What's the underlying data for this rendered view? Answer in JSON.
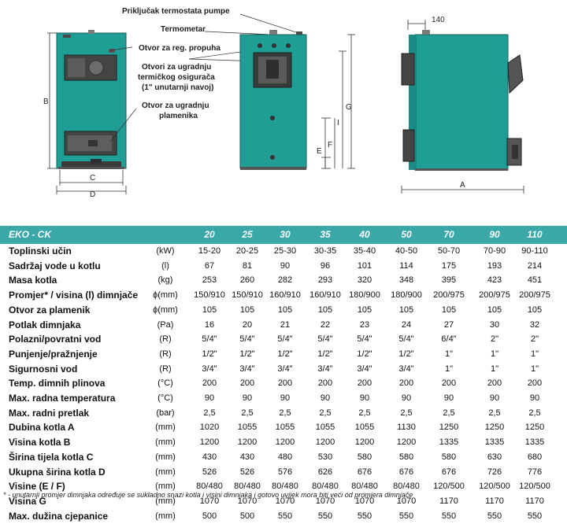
{
  "labels": {
    "thermostat": "Priključak termostata pumpe",
    "thermometer": "Termometar",
    "draft_opening": "Otvor za reg. propuha",
    "thermal_valve_l1": "Otvori za ugradnju",
    "thermal_valve_l2": "termičkog osigurača",
    "thermal_valve_l3": "(1\" unutarnji navoj)",
    "burner_l1": "Otvor za ugradnju",
    "burner_l2": "plamenika"
  },
  "dimensions": {
    "a": "A",
    "b": "B",
    "c": "C",
    "d": "D",
    "e": "E",
    "f": "F",
    "g": "G",
    "i": "I",
    "w140": "140"
  },
  "table": {
    "title": "EKO - CK",
    "columns": [
      "20",
      "25",
      "30",
      "35",
      "40",
      "50",
      "70",
      "90",
      "110"
    ],
    "rows": [
      {
        "name": "Toplinski učin",
        "unit": "(kW)",
        "values": [
          "15-20",
          "20-25",
          "25-30",
          "30-35",
          "35-40",
          "40-50",
          "50-70",
          "70-90",
          "90-110"
        ]
      },
      {
        "name": "Sadržaj vode u kotlu",
        "unit": "(l)",
        "values": [
          "67",
          "81",
          "90",
          "96",
          "101",
          "114",
          "175",
          "193",
          "214"
        ]
      },
      {
        "name": "Masa kotla",
        "unit": "(kg)",
        "values": [
          "253",
          "260",
          "282",
          "293",
          "320",
          "348",
          "395",
          "423",
          "451"
        ]
      },
      {
        "name": "Promjer* / visina (l) dimnjače",
        "unit": "ɸ(mm)",
        "values": [
          "150/910",
          "150/910",
          "160/910",
          "160/910",
          "180/900",
          "180/900",
          "200/975",
          "200/975",
          "200/975"
        ]
      },
      {
        "name": "Otvor za plamenik",
        "unit": "ɸ(mm)",
        "values": [
          "105",
          "105",
          "105",
          "105",
          "105",
          "105",
          "105",
          "105",
          "105"
        ]
      },
      {
        "name": "Potlak dimnjaka",
        "unit": "(Pa)",
        "values": [
          "16",
          "20",
          "21",
          "22",
          "23",
          "24",
          "27",
          "30",
          "32"
        ]
      },
      {
        "name": "Polazni/povratni vod",
        "unit": "(R)",
        "values": [
          "5/4\"",
          "5/4\"",
          "5/4\"",
          "5/4\"",
          "5/4\"",
          "5/4\"",
          "6/4\"",
          "2\"",
          "2\""
        ]
      },
      {
        "name": "Punjenje/pražnjenje",
        "unit": "(R)",
        "values": [
          "1/2\"",
          "1/2\"",
          "1/2\"",
          "1/2\"",
          "1/2\"",
          "1/2\"",
          "1\"",
          "1\"",
          "1\""
        ]
      },
      {
        "name": "Sigurnosni vod",
        "unit": "(R)",
        "values": [
          "3/4\"",
          "3/4\"",
          "3/4\"",
          "3/4\"",
          "3/4\"",
          "3/4\"",
          "1\"",
          "1\"",
          "1\""
        ]
      },
      {
        "name": "Temp. dimnih plinova",
        "unit": "(°C)",
        "values": [
          "200",
          "200",
          "200",
          "200",
          "200",
          "200",
          "200",
          "200",
          "200"
        ]
      },
      {
        "name": "Max. radna temperatura",
        "unit": "(°C)",
        "values": [
          "90",
          "90",
          "90",
          "90",
          "90",
          "90",
          "90",
          "90",
          "90"
        ]
      },
      {
        "name": "Max. radni pretlak",
        "unit": "(bar)",
        "values": [
          "2,5",
          "2,5",
          "2,5",
          "2,5",
          "2,5",
          "2,5",
          "2,5",
          "2,5",
          "2,5"
        ]
      },
      {
        "name": "Dubina kotla  A",
        "unit": "(mm)",
        "values": [
          "1020",
          "1055",
          "1055",
          "1055",
          "1055",
          "1130",
          "1250",
          "1250",
          "1250"
        ]
      },
      {
        "name": "Visina kotla B",
        "unit": "(mm)",
        "values": [
          "1200",
          "1200",
          "1200",
          "1200",
          "1200",
          "1200",
          "1335",
          "1335",
          "1335"
        ]
      },
      {
        "name": "Širina tijela kotla C",
        "unit": "(mm)",
        "values": [
          "430",
          "430",
          "480",
          "530",
          "580",
          "580",
          "580",
          "630",
          "680"
        ]
      },
      {
        "name": "Ukupna širina kotla D",
        "unit": "(mm)",
        "values": [
          "526",
          "526",
          "576",
          "626",
          "676",
          "676",
          "676",
          "726",
          "776"
        ]
      },
      {
        "name": "Visine   (E / F)",
        "unit": "(mm)",
        "values": [
          "80/480",
          "80/480",
          "80/480",
          "80/480",
          "80/480",
          "80/480",
          "120/500",
          "120/500",
          "120/500"
        ]
      },
      {
        "name": "Visina  G",
        "unit": "(mm)",
        "values": [
          "1070",
          "1070",
          "1070",
          "1070",
          "1070",
          "1070",
          "1170",
          "1170",
          "1170"
        ]
      },
      {
        "name": "Max. dužina cjepanice",
        "unit": "(mm)",
        "values": [
          "500",
          "500",
          "550",
          "550",
          "550",
          "550",
          "550",
          "550",
          "550"
        ]
      }
    ],
    "footnote": "* - unutarnji promjer dimnjaka određuje se sukladno snazi kotla i visini dimnjaka i gotovo uvijek mora biti veći od promjera dimnjače"
  },
  "colors": {
    "boiler": "#1f9e95",
    "header": "#3aa8a8",
    "dark": "#3a3a3a"
  }
}
